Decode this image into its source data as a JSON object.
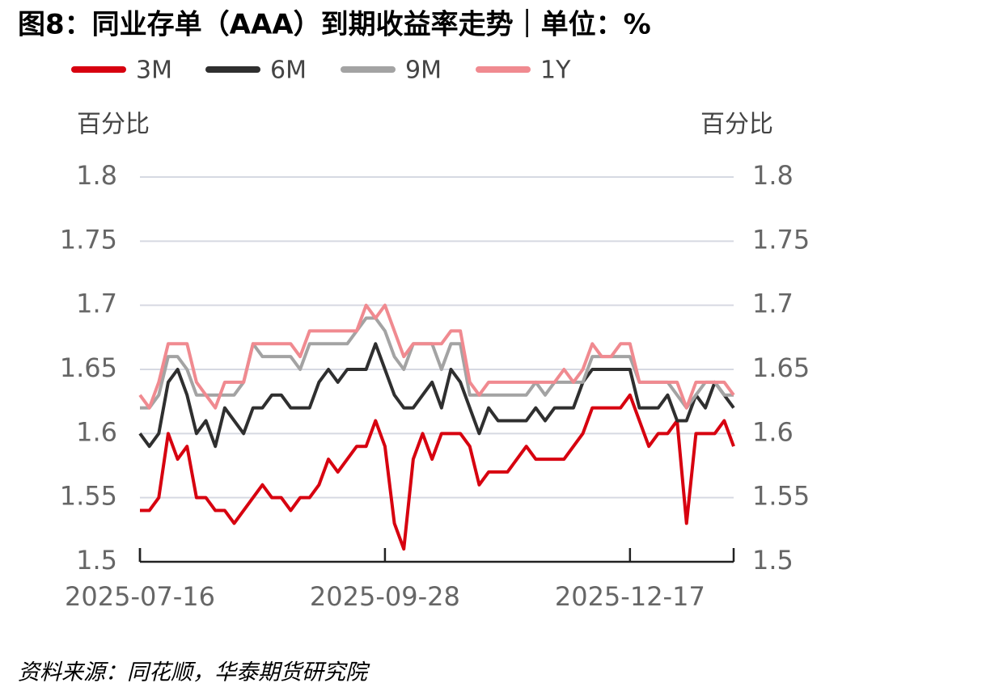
{
  "chart_data": {
    "type": "line",
    "title": "图8：同业存单（AAA）到期收益率走势｜单位：%",
    "y_label": "百分比",
    "y2_label": "百分比",
    "source": "资料来源：同花顺，华泰期货研究院",
    "categories": [
      "2025-07-16",
      null,
      null,
      null,
      null,
      null,
      null,
      null,
      null,
      null,
      null,
      null,
      null,
      null,
      null,
      null,
      null,
      null,
      null,
      null,
      null,
      null,
      null,
      null,
      null,
      null,
      "2025-09-28",
      null,
      null,
      null,
      null,
      null,
      null,
      null,
      null,
      null,
      null,
      null,
      null,
      null,
      null,
      null,
      null,
      null,
      null,
      null,
      null,
      null,
      null,
      null,
      null,
      null,
      "2025-12-17",
      null,
      null,
      null,
      null,
      null,
      null,
      null,
      null,
      null,
      null,
      null
    ],
    "series": [
      {
        "name": "3M",
        "color": "#d7000f",
        "values": [
          1.54,
          1.54,
          1.55,
          1.6,
          1.58,
          1.59,
          1.55,
          1.55,
          1.54,
          1.54,
          1.53,
          1.54,
          1.55,
          1.56,
          1.55,
          1.55,
          1.54,
          1.55,
          1.55,
          1.56,
          1.58,
          1.57,
          1.58,
          1.59,
          1.59,
          1.61,
          1.59,
          1.53,
          1.51,
          1.58,
          1.6,
          1.58,
          1.6,
          1.6,
          1.6,
          1.59,
          1.56,
          1.57,
          1.57,
          1.57,
          1.58,
          1.59,
          1.58,
          1.58,
          1.58,
          1.58,
          1.59,
          1.6,
          1.62,
          1.62,
          1.62,
          1.62,
          1.63,
          1.61,
          1.59,
          1.6,
          1.6,
          1.61,
          1.53,
          1.6,
          1.6,
          1.6,
          1.61,
          1.59
        ]
      },
      {
        "name": "6M",
        "color": "#2f2f2f",
        "values": [
          1.6,
          1.59,
          1.6,
          1.64,
          1.65,
          1.63,
          1.6,
          1.61,
          1.59,
          1.62,
          1.61,
          1.6,
          1.62,
          1.62,
          1.63,
          1.63,
          1.62,
          1.62,
          1.62,
          1.64,
          1.65,
          1.64,
          1.65,
          1.65,
          1.65,
          1.67,
          1.65,
          1.63,
          1.62,
          1.62,
          1.63,
          1.64,
          1.62,
          1.65,
          1.64,
          1.62,
          1.6,
          1.62,
          1.61,
          1.61,
          1.61,
          1.61,
          1.62,
          1.61,
          1.62,
          1.62,
          1.62,
          1.64,
          1.65,
          1.65,
          1.65,
          1.65,
          1.65,
          1.62,
          1.62,
          1.62,
          1.63,
          1.61,
          1.61,
          1.63,
          1.62,
          1.64,
          1.63,
          1.62
        ]
      },
      {
        "name": "9M",
        "color": "#a3a3a3",
        "values": [
          1.62,
          1.62,
          1.63,
          1.66,
          1.66,
          1.65,
          1.63,
          1.63,
          1.63,
          1.63,
          1.63,
          1.64,
          1.67,
          1.66,
          1.66,
          1.66,
          1.66,
          1.65,
          1.67,
          1.67,
          1.67,
          1.67,
          1.67,
          1.68,
          1.69,
          1.69,
          1.68,
          1.66,
          1.65,
          1.67,
          1.67,
          1.67,
          1.65,
          1.67,
          1.67,
          1.63,
          1.63,
          1.63,
          1.63,
          1.63,
          1.63,
          1.63,
          1.64,
          1.63,
          1.64,
          1.64,
          1.64,
          1.64,
          1.66,
          1.66,
          1.66,
          1.66,
          1.66,
          1.64,
          1.64,
          1.64,
          1.64,
          1.63,
          1.62,
          1.63,
          1.64,
          1.64,
          1.63,
          1.63
        ]
      },
      {
        "name": "1Y",
        "color": "#f08a90",
        "values": [
          1.63,
          1.62,
          1.64,
          1.67,
          1.67,
          1.67,
          1.64,
          1.63,
          1.62,
          1.64,
          1.64,
          1.64,
          1.67,
          1.67,
          1.67,
          1.67,
          1.67,
          1.66,
          1.68,
          1.68,
          1.68,
          1.68,
          1.68,
          1.68,
          1.7,
          1.69,
          1.7,
          1.68,
          1.66,
          1.67,
          1.67,
          1.67,
          1.67,
          1.68,
          1.68,
          1.64,
          1.63,
          1.64,
          1.64,
          1.64,
          1.64,
          1.64,
          1.64,
          1.64,
          1.64,
          1.65,
          1.64,
          1.65,
          1.67,
          1.66,
          1.66,
          1.67,
          1.67,
          1.64,
          1.64,
          1.64,
          1.64,
          1.64,
          1.62,
          1.64,
          1.64,
          1.64,
          1.64,
          1.63
        ]
      }
    ],
    "ylim": [
      1.5,
      1.8
    ],
    "yticks": [
      1.5,
      1.55,
      1.6,
      1.65,
      1.7,
      1.75,
      1.8
    ],
    "y2lim": [
      1.5,
      1.8
    ],
    "y2ticks": [
      1.5,
      1.55,
      1.6,
      1.65,
      1.7,
      1.75,
      1.8
    ],
    "grid": true
  }
}
